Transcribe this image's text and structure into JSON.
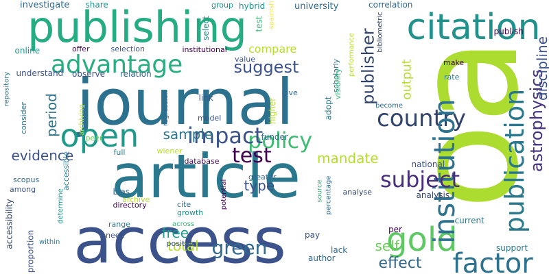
{
  "words": [
    {
      "text": "access",
      "color": "#3b528b",
      "vertical": false
    },
    {
      "text": "oa",
      "color": "#addc30",
      "vertical": true
    },
    {
      "text": "journal",
      "color": "#2c728e",
      "vertical": false
    },
    {
      "text": "article",
      "color": "#2a788e",
      "vertical": false
    },
    {
      "text": "publishing",
      "color": "#25ac82",
      "vertical": false
    },
    {
      "text": "citation",
      "color": "#21918c",
      "vertical": false
    },
    {
      "text": "advantage",
      "color": "#28ae80",
      "vertical": false
    },
    {
      "text": "open",
      "color": "#1f9a8a",
      "vertical": false
    },
    {
      "text": "policy",
      "color": "#3fbc73",
      "vertical": false
    },
    {
      "text": "impact",
      "color": "#3b528b",
      "vertical": false
    },
    {
      "text": "gold",
      "color": "#5ec962",
      "vertical": false
    },
    {
      "text": "factor",
      "color": "#2c728e",
      "vertical": false
    },
    {
      "text": "country",
      "color": "#31446b",
      "vertical": false
    },
    {
      "text": "institution",
      "color": "#2c728e",
      "vertical": true
    },
    {
      "text": "publication",
      "color": "#2a788e",
      "vertical": true
    },
    {
      "text": "astrophysics",
      "color": "#46327e",
      "vertical": true
    },
    {
      "text": "discipline",
      "color": "#3b528b",
      "vertical": true
    },
    {
      "text": "test",
      "color": "#440154",
      "vertical": false
    },
    {
      "text": "subject",
      "color": "#472d7b",
      "vertical": false
    },
    {
      "text": "green",
      "color": "#31688e",
      "vertical": false
    },
    {
      "text": "mandate",
      "color": "#b5de2b",
      "vertical": false
    },
    {
      "text": "suggest",
      "color": "#3b528b",
      "vertical": false
    },
    {
      "text": "compare",
      "color": "#b5de2b",
      "vertical": false
    },
    {
      "text": "publisher",
      "color": "#31446b",
      "vertical": true
    },
    {
      "text": "evidence",
      "color": "#3b528b",
      "vertical": false
    },
    {
      "text": "period",
      "color": "#2c728e",
      "vertical": true
    },
    {
      "text": "sample",
      "color": "#2a788e",
      "vertical": false
    },
    {
      "text": "type",
      "color": "#3b528b",
      "vertical": false
    },
    {
      "text": "free",
      "color": "#1f9a8a",
      "vertical": false
    },
    {
      "text": "total",
      "color": "#b5de2b",
      "vertical": false
    },
    {
      "text": "self",
      "color": "#6ccd5a",
      "vertical": false
    },
    {
      "text": "effect",
      "color": "#31688e",
      "vertical": false
    },
    {
      "text": "output",
      "color": "#b5de2b",
      "vertical": true
    },
    {
      "text": "investigate",
      "color": "#31688e",
      "vertical": false
    },
    {
      "text": "university",
      "color": "#31688e",
      "vertical": false
    },
    {
      "text": "hybrid",
      "color": "#21918c",
      "vertical": false
    },
    {
      "text": "share",
      "color": "#21918c",
      "vertical": false
    },
    {
      "text": "group",
      "color": "#21918c",
      "vertical": false
    },
    {
      "text": "spainish",
      "color": "#fde725",
      "vertical": true
    },
    {
      "text": "test",
      "color": "#35b779",
      "vertical": true
    },
    {
      "text": "select",
      "color": "#21918c",
      "vertical": true
    },
    {
      "text": "correlation",
      "color": "#31688e",
      "vertical": false
    },
    {
      "text": "bibliometric",
      "color": "#31446b",
      "vertical": true
    },
    {
      "text": "performance",
      "color": "#b5de2b",
      "vertical": true
    },
    {
      "text": "publish",
      "color": "#440154",
      "vertical": false
    },
    {
      "text": "online",
      "color": "#21918c",
      "vertical": false
    },
    {
      "text": "offer",
      "color": "#440154",
      "vertical": false
    },
    {
      "text": "selection",
      "color": "#3b528b",
      "vertical": false
    },
    {
      "text": "institutional",
      "color": "#440154",
      "vertical": false
    },
    {
      "text": "value",
      "color": "#3b528b",
      "vertical": false
    },
    {
      "text": "understand",
      "color": "#3b528b",
      "vertical": false
    },
    {
      "text": "observe",
      "color": "#3b528b",
      "vertical": false
    },
    {
      "text": "relation",
      "color": "#31688e",
      "vertical": false
    },
    {
      "text": "scholarly",
      "color": "#2c728e",
      "vertical": true
    },
    {
      "text": "visibility",
      "color": "#35b779",
      "vertical": true
    },
    {
      "text": "make",
      "color": "#440154",
      "vertical": false
    },
    {
      "text": "rate",
      "color": "#2a788e",
      "vertical": false
    },
    {
      "text": "become",
      "color": "#31688e",
      "vertical": false
    },
    {
      "text": "repository",
      "color": "#2a788e",
      "vertical": true
    },
    {
      "text": "link",
      "color": "#3b528b",
      "vertical": false
    },
    {
      "text": "regression",
      "color": "#31688e",
      "vertical": true
    },
    {
      "text": "higher",
      "color": "#b5de2b",
      "vertical": true
    },
    {
      "text": "adopt",
      "color": "#2a788e",
      "vertical": true
    },
    {
      "text": "give",
      "color": "#31688e",
      "vertical": false
    },
    {
      "text": "consider",
      "color": "#2a788e",
      "vertical": true
    },
    {
      "text": "archiving",
      "color": "#b5de2b",
      "vertical": true
    },
    {
      "text": "model",
      "color": "#3b528b",
      "vertical": false
    },
    {
      "text": "full",
      "color": "#2a788e",
      "vertical": false
    },
    {
      "text": "peer",
      "color": "#6ccd5a",
      "vertical": false
    },
    {
      "text": "wiener",
      "color": "#b5de2b",
      "vertical": false
    },
    {
      "text": "database",
      "color": "#440154",
      "vertical": false
    },
    {
      "text": "accessible",
      "color": "#2a788e",
      "vertical": true
    },
    {
      "text": "scopus",
      "color": "#31688e",
      "vertical": false
    },
    {
      "text": "among",
      "color": "#3b528b",
      "vertical": false
    },
    {
      "text": "accessibility",
      "color": "#31446b",
      "vertical": true
    },
    {
      "text": "determine",
      "color": "#21918c",
      "vertical": true
    },
    {
      "text": "bias",
      "color": "#31688e",
      "vertical": false
    },
    {
      "text": "archive",
      "color": "#b5de2b",
      "vertical": false
    },
    {
      "text": "directory",
      "color": "#440154",
      "vertical": false
    },
    {
      "text": "cite",
      "color": "#31688e",
      "vertical": false
    },
    {
      "text": "growth",
      "color": "#21918c",
      "vertical": false
    },
    {
      "text": "greater",
      "color": "#31688e",
      "vertical": false
    },
    {
      "text": "potential",
      "color": "#440154",
      "vertical": true
    },
    {
      "text": "source",
      "color": "#35b779",
      "vertical": true
    },
    {
      "text": "percentage",
      "color": "#31688e",
      "vertical": true
    },
    {
      "text": "analyse",
      "color": "#31446b",
      "vertical": false
    },
    {
      "text": "national",
      "color": "#3b528b",
      "vertical": false
    },
    {
      "text": "analysis",
      "color": "#31446b",
      "vertical": false
    },
    {
      "text": "range",
      "color": "#2a788e",
      "vertical": false
    },
    {
      "text": "across",
      "color": "#35b779",
      "vertical": false
    },
    {
      "text": "need",
      "color": "#3b528b",
      "vertical": false
    },
    {
      "text": "positive",
      "color": "#3b528b",
      "vertical": false
    },
    {
      "text": "within",
      "color": "#2a788e",
      "vertical": false
    },
    {
      "text": "proportion",
      "color": "#3b528b",
      "vertical": true
    },
    {
      "text": "pay",
      "color": "#3b528b",
      "vertical": false
    },
    {
      "text": "lack",
      "color": "#31688e",
      "vertical": false
    },
    {
      "text": "author",
      "color": "#31688e",
      "vertical": false
    },
    {
      "text": "per",
      "color": "#440154",
      "vertical": false
    },
    {
      "text": "current",
      "color": "#2a788e",
      "vertical": false
    },
    {
      "text": "support",
      "color": "#2a788e",
      "vertical": false
    },
    {
      "text": "funder",
      "color": "#31688e",
      "vertical": false
    }
  ]
}
